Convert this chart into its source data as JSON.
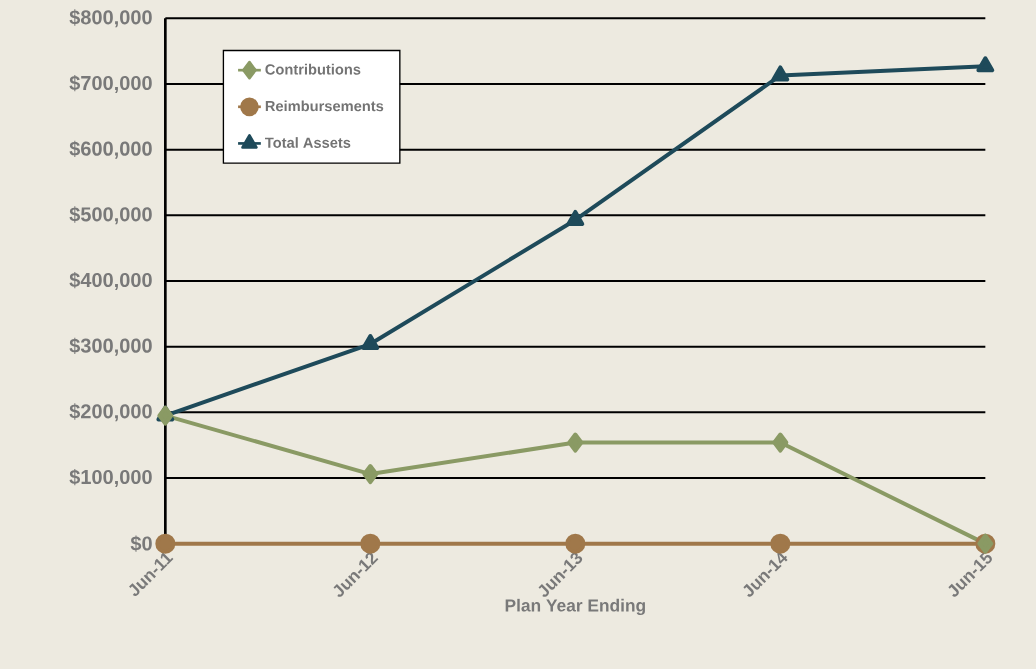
{
  "chart_data": {
    "type": "line",
    "xlabel": "Plan Year Ending",
    "categories": [
      "Jun-11",
      "Jun-12",
      "Jun-13",
      "Jun-14",
      "Jun-15"
    ],
    "series": [
      {
        "name": "Contributions",
        "color": "#8a9a64",
        "marker": "diamond",
        "values": [
          195000,
          106000,
          154000,
          154000,
          0
        ]
      },
      {
        "name": "Reimbursements",
        "color": "#a0784a",
        "marker": "circle",
        "values": [
          0,
          0,
          0,
          0,
          0
        ]
      },
      {
        "name": "Total Assets",
        "color": "#1e4a5a",
        "marker": "triangle",
        "values": [
          195000,
          304000,
          493000,
          713000,
          727000
        ]
      }
    ],
    "ylim": [
      0,
      800000
    ],
    "yticks": [
      {
        "value": 0,
        "label": "$0"
      },
      {
        "value": 100000,
        "label": "$100,000"
      },
      {
        "value": 200000,
        "label": "$200,000"
      },
      {
        "value": 300000,
        "label": "$300,000"
      },
      {
        "value": 400000,
        "label": "$400,000"
      },
      {
        "value": 500000,
        "label": "$500,000"
      },
      {
        "value": 600000,
        "label": "$600,000"
      },
      {
        "value": 700000,
        "label": "$700,000"
      },
      {
        "value": 800000,
        "label": "$800,000"
      }
    ],
    "grid": "y",
    "legend": "top left",
    "line_style": "solid"
  }
}
